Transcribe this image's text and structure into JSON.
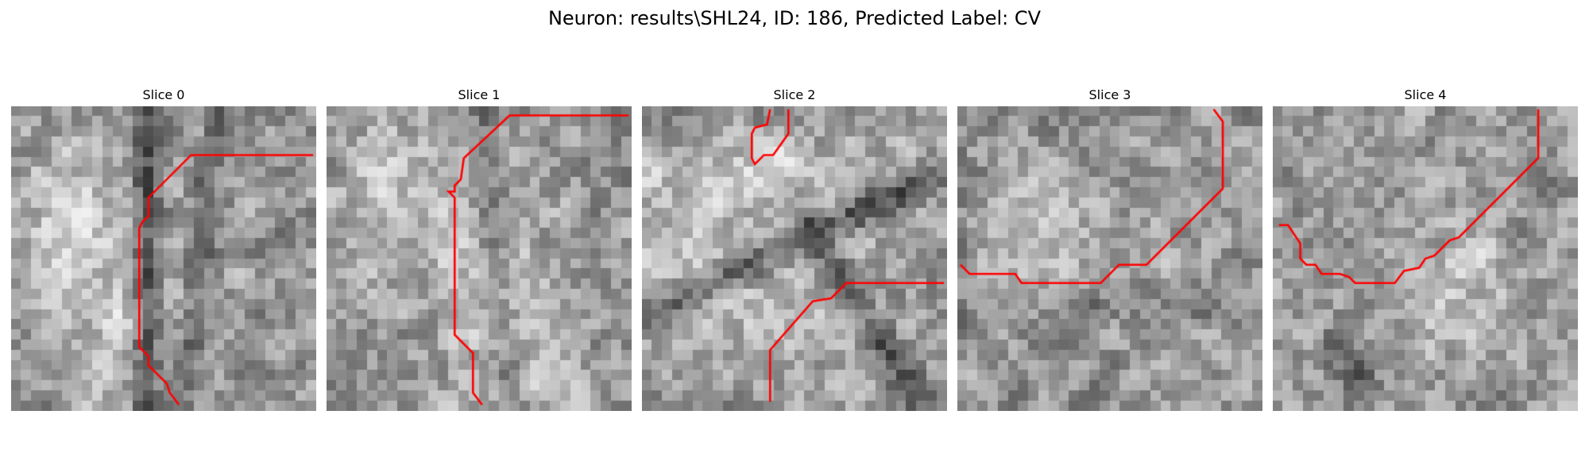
{
  "figure": {
    "title": "Neuron: results\\SHL24, ID: 186, Predicted Label: CV"
  },
  "slices": [
    {
      "title": "Slice 0",
      "seed": 11,
      "bright_blobs": [
        [
          0.35,
          0.65,
          0.28,
          0.75
        ],
        [
          0.15,
          0.35,
          0.2,
          0.4
        ]
      ],
      "dark_bands": [
        [
          0.45,
          0.0,
          0.45,
          1.0,
          -0.35
        ],
        [
          0.7,
          0.0,
          0.55,
          1.0,
          -0.2
        ]
      ],
      "trace": [
        [
          0.59,
          0.16
        ],
        [
          0.99,
          0.16
        ],
        [
          0.59,
          0.16
        ],
        [
          0.45,
          0.3
        ],
        [
          0.45,
          0.36
        ],
        [
          0.43,
          0.38
        ],
        [
          0.42,
          0.4
        ],
        [
          0.42,
          0.79
        ],
        [
          0.45,
          0.82
        ],
        [
          0.45,
          0.85
        ],
        [
          0.51,
          0.91
        ],
        [
          0.52,
          0.94
        ],
        [
          0.55,
          0.98
        ]
      ]
    },
    {
      "title": "Slice 1",
      "seed": 23,
      "bright_blobs": [
        [
          0.6,
          0.72,
          0.3,
          0.8
        ],
        [
          0.25,
          0.3,
          0.35,
          0.45
        ]
      ],
      "dark_bands": [
        [
          0.5,
          0.0,
          0.6,
          1.0,
          -0.2
        ]
      ],
      "trace": [
        [
          0.99,
          0.03
        ],
        [
          0.6,
          0.03
        ],
        [
          0.45,
          0.17
        ],
        [
          0.44,
          0.24
        ],
        [
          0.42,
          0.26
        ],
        [
          0.42,
          0.28
        ],
        [
          0.4,
          0.28
        ],
        [
          0.42,
          0.3
        ],
        [
          0.42,
          0.75
        ],
        [
          0.48,
          0.81
        ],
        [
          0.48,
          0.94
        ],
        [
          0.51,
          0.98
        ]
      ]
    },
    {
      "title": "Slice 2",
      "seed": 37,
      "bright_blobs": [
        [
          0.4,
          0.2,
          0.95,
          0.15
        ],
        [
          0.3,
          0.55,
          0.7,
          0.45
        ]
      ],
      "dark_bands": [
        [
          0.0,
          0.7,
          1.0,
          0.2,
          -0.35
        ],
        [
          0.55,
          0.4,
          0.9,
          0.95,
          -0.3
        ]
      ],
      "trace": [
        [
          0.99,
          0.58
        ],
        [
          0.67,
          0.58
        ],
        [
          0.62,
          0.63
        ],
        [
          0.56,
          0.64
        ],
        [
          0.42,
          0.8
        ],
        [
          0.42,
          0.97
        ]
      ],
      "trace2": [
        [
          0.42,
          0.01
        ],
        [
          0.41,
          0.06
        ],
        [
          0.37,
          0.07
        ],
        [
          0.36,
          0.09
        ],
        [
          0.36,
          0.17
        ],
        [
          0.37,
          0.19
        ],
        [
          0.4,
          0.16
        ],
        [
          0.43,
          0.16
        ],
        [
          0.48,
          0.09
        ],
        [
          0.48,
          0.01
        ]
      ]
    },
    {
      "title": "Slice 3",
      "seed": 49,
      "bright_blobs": [
        [
          0.25,
          0.45,
          0.25,
          0.3
        ]
      ],
      "dark_bands": [
        [
          0.0,
          0.65,
          1.0,
          0.65,
          -0.1
        ]
      ],
      "trace": [
        [
          0.84,
          0.01
        ],
        [
          0.87,
          0.05
        ],
        [
          0.87,
          0.27
        ],
        [
          0.62,
          0.52
        ],
        [
          0.53,
          0.52
        ],
        [
          0.47,
          0.58
        ],
        [
          0.21,
          0.58
        ],
        [
          0.19,
          0.55
        ],
        [
          0.04,
          0.55
        ],
        [
          0.01,
          0.52
        ]
      ]
    },
    {
      "title": "Slice 4",
      "seed": 61,
      "bright_blobs": [
        [
          0.6,
          0.6,
          0.35,
          0.35
        ]
      ],
      "dark_bands": [
        [
          0.2,
          0.8,
          0.3,
          0.9,
          -0.2
        ]
      ],
      "trace": [
        [
          0.87,
          0.01
        ],
        [
          0.87,
          0.17
        ],
        [
          0.61,
          0.43
        ],
        [
          0.58,
          0.44
        ],
        [
          0.53,
          0.49
        ],
        [
          0.5,
          0.5
        ],
        [
          0.48,
          0.53
        ],
        [
          0.43,
          0.54
        ],
        [
          0.4,
          0.58
        ],
        [
          0.27,
          0.58
        ],
        [
          0.25,
          0.56
        ],
        [
          0.22,
          0.55
        ],
        [
          0.16,
          0.55
        ],
        [
          0.14,
          0.52
        ],
        [
          0.11,
          0.52
        ],
        [
          0.09,
          0.5
        ],
        [
          0.09,
          0.45
        ],
        [
          0.05,
          0.39
        ],
        [
          0.02,
          0.39
        ]
      ]
    }
  ],
  "colors": {
    "trace": "#ff0000"
  },
  "image": {
    "grid_cells": 30,
    "colormap": "gray"
  }
}
